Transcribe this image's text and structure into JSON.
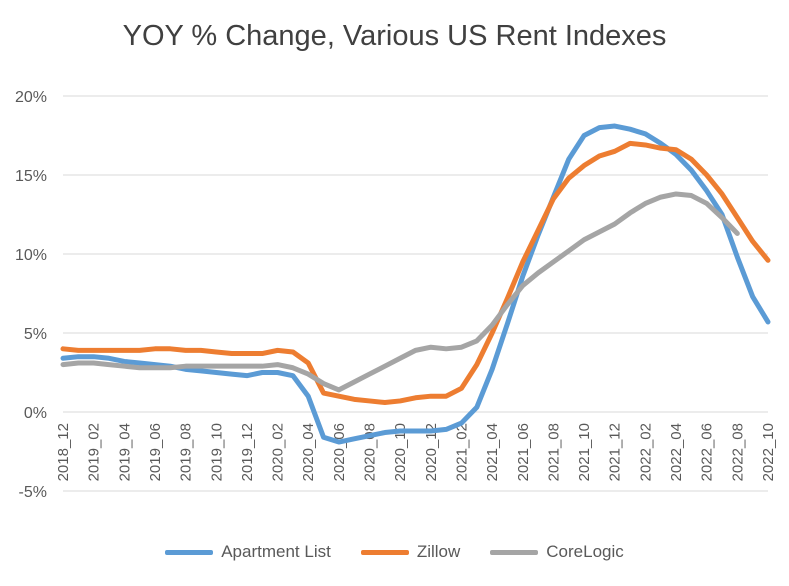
{
  "chart_data": {
    "type": "line",
    "title": "YOY % Change, Various US Rent Indexes",
    "xlabel": "",
    "ylabel": "",
    "ylim": [
      -5,
      20
    ],
    "yticks": [
      "20%",
      "15%",
      "10%",
      "5%",
      "0%",
      "-5%"
    ],
    "ytick_values": [
      20,
      15,
      10,
      5,
      0,
      -5
    ],
    "grid": true,
    "legend_position": "bottom",
    "x": [
      "2018_12",
      "2019_01",
      "2019_02",
      "2019_03",
      "2019_04",
      "2019_05",
      "2019_06",
      "2019_07",
      "2019_08",
      "2019_09",
      "2019_10",
      "2019_11",
      "2019_12",
      "2020_01",
      "2020_02",
      "2020_03",
      "2020_04",
      "2020_05",
      "2020_06",
      "2020_07",
      "2020_08",
      "2020_09",
      "2020_10",
      "2020_11",
      "2020_12",
      "2021_01",
      "2021_02",
      "2021_03",
      "2021_04",
      "2021_05",
      "2021_06",
      "2021_07",
      "2021_08",
      "2021_09",
      "2021_10",
      "2021_11",
      "2021_12",
      "2022_01",
      "2022_02",
      "2022_03",
      "2022_04",
      "2022_05",
      "2022_06",
      "2022_07",
      "2022_08",
      "2022_09",
      "2022_10"
    ],
    "xtick_labels": [
      "2018_12",
      "2019_02",
      "2019_04",
      "2019_06",
      "2019_08",
      "2019_10",
      "2019_12",
      "2020_02",
      "2020_04",
      "2020_06",
      "2020_08",
      "2020_10",
      "2020_12",
      "2021_02",
      "2021_04",
      "2021_06",
      "2021_08",
      "2021_10",
      "2021_12",
      "2022_02",
      "2022_04",
      "2022_06",
      "2022_08",
      "2022_10"
    ],
    "series": [
      {
        "name": "Apartment List",
        "color": "#5B9BD5",
        "values": [
          3.4,
          3.5,
          3.5,
          3.4,
          3.2,
          3.1,
          3.0,
          2.9,
          2.7,
          2.6,
          2.5,
          2.4,
          2.3,
          2.5,
          2.5,
          2.3,
          1.0,
          -1.6,
          -1.9,
          -1.7,
          -1.5,
          -1.3,
          -1.2,
          -1.2,
          -1.2,
          -1.1,
          -0.7,
          0.3,
          2.7,
          5.6,
          8.6,
          11.2,
          13.6,
          16.0,
          17.5,
          18.0,
          18.1,
          17.9,
          17.6,
          17.0,
          16.3,
          15.3,
          14.0,
          12.5,
          9.8,
          7.3,
          5.7
        ]
      },
      {
        "name": "Zillow",
        "color": "#ED7D31",
        "values": [
          4.0,
          3.9,
          3.9,
          3.9,
          3.9,
          3.9,
          4.0,
          4.0,
          3.9,
          3.9,
          3.8,
          3.7,
          3.7,
          3.7,
          3.9,
          3.8,
          3.1,
          1.2,
          1.0,
          0.8,
          0.7,
          0.6,
          0.7,
          0.9,
          1.0,
          1.0,
          1.5,
          3.0,
          5.0,
          7.2,
          9.5,
          11.5,
          13.5,
          14.8,
          15.6,
          16.2,
          16.5,
          17.0,
          16.9,
          16.7,
          16.6,
          16.0,
          15.0,
          13.8,
          12.3,
          10.8,
          9.6
        ]
      },
      {
        "name": "CoreLogic",
        "color": "#A5A5A5",
        "values": [
          3.0,
          3.1,
          3.1,
          3.0,
          2.9,
          2.8,
          2.8,
          2.8,
          2.9,
          2.9,
          2.9,
          2.9,
          2.9,
          2.9,
          3.0,
          2.8,
          2.4,
          1.8,
          1.4,
          1.9,
          2.4,
          2.9,
          3.4,
          3.9,
          4.1,
          4.0,
          4.1,
          4.5,
          5.5,
          6.8,
          8.0,
          8.8,
          9.5,
          10.2,
          10.9,
          11.4,
          11.9,
          12.6,
          13.2,
          13.6,
          13.8,
          13.7,
          13.2,
          12.3,
          11.3,
          null,
          null
        ]
      }
    ]
  }
}
